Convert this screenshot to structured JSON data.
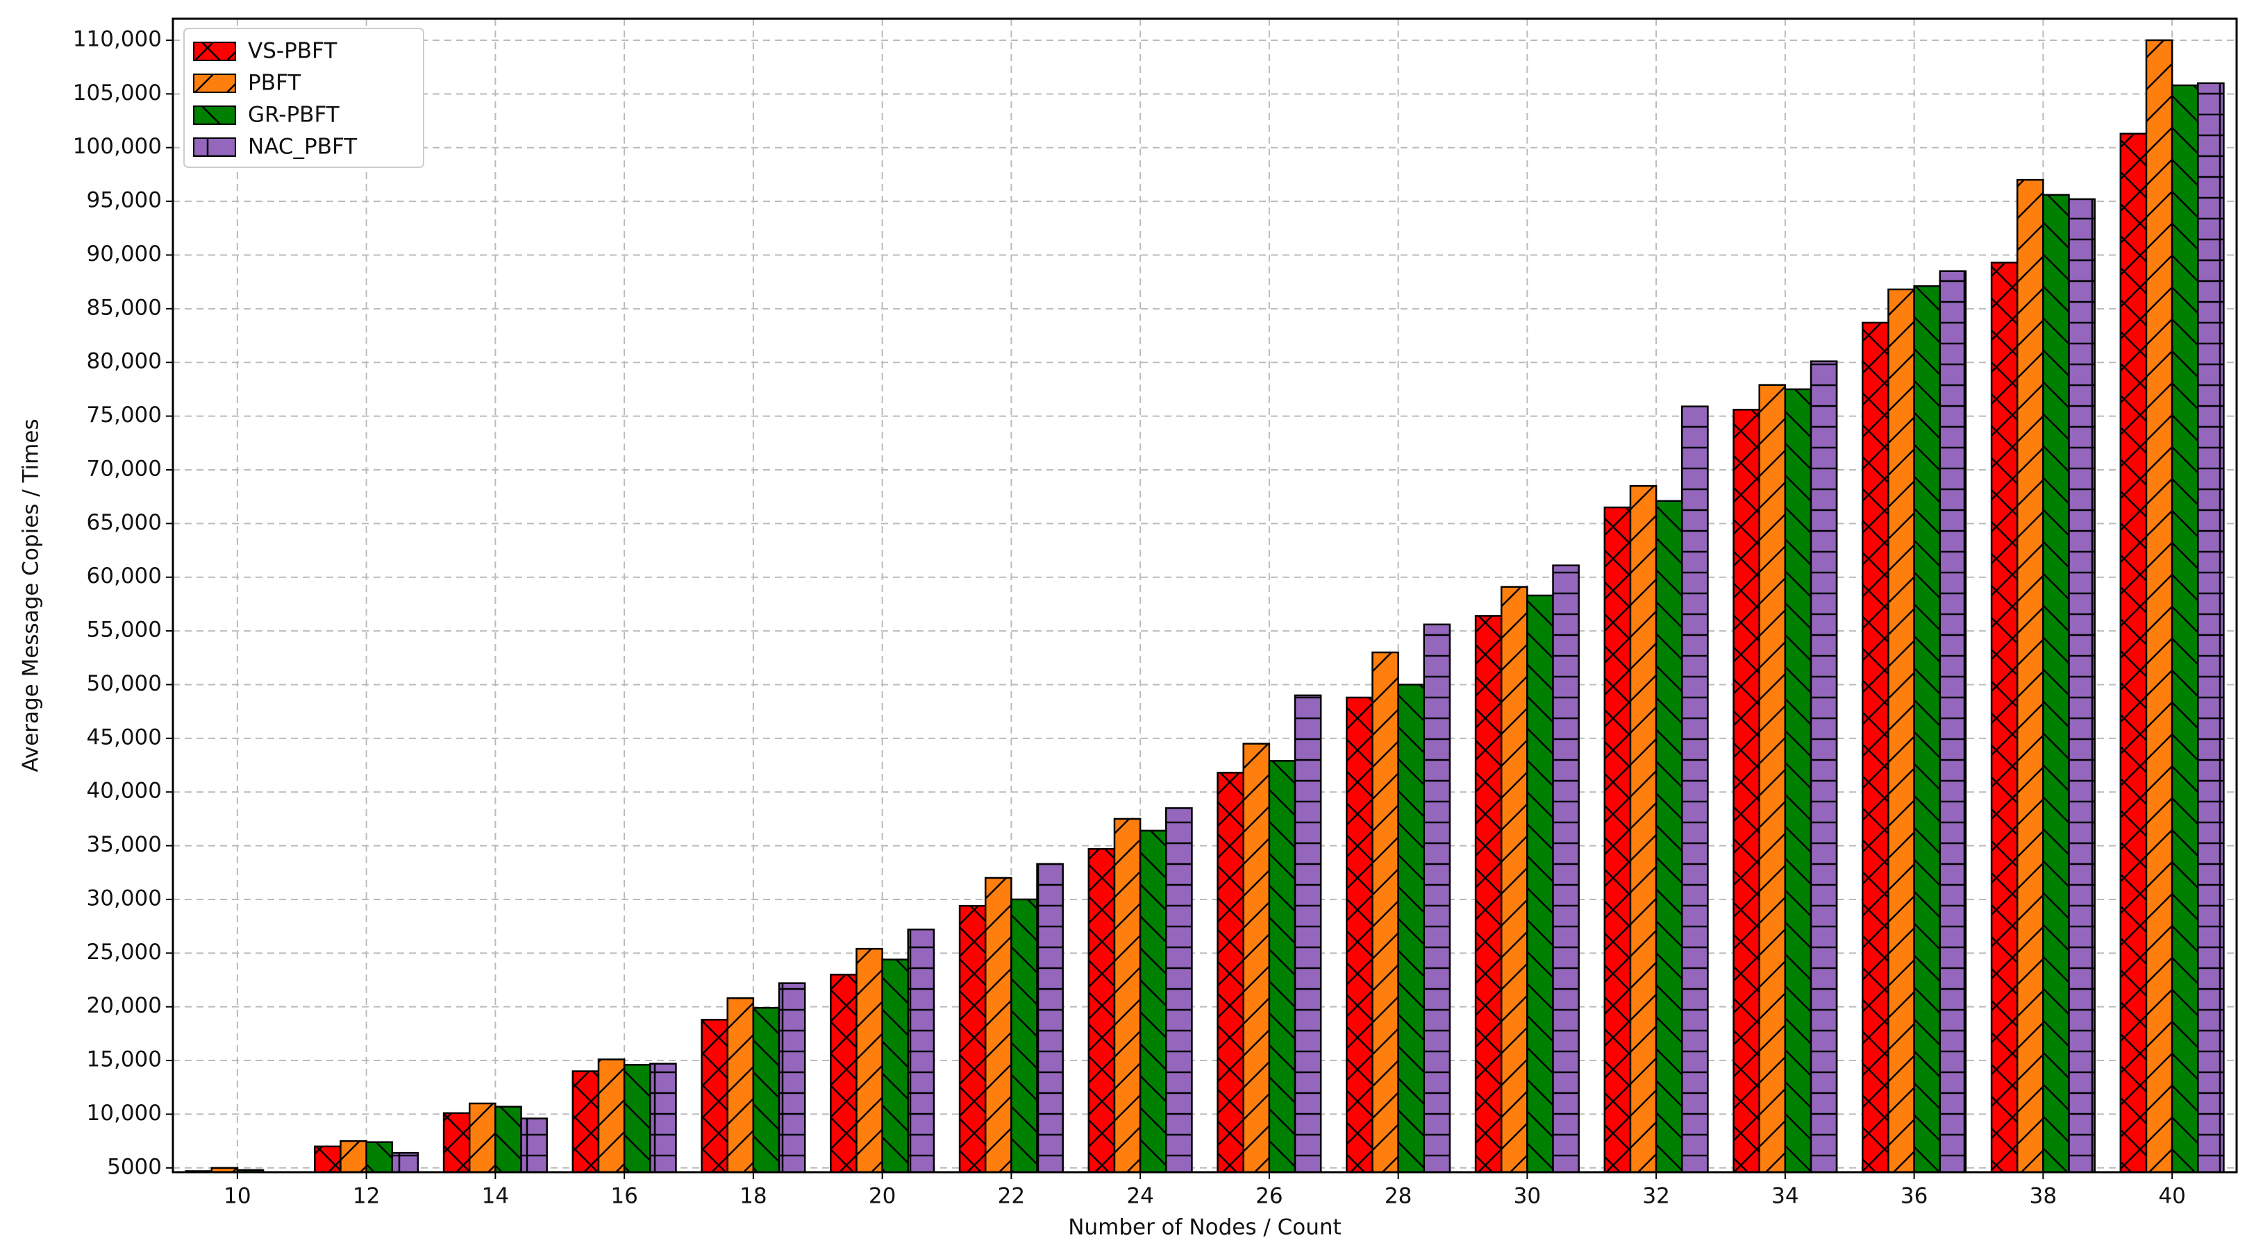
{
  "chart_data": {
    "type": "bar",
    "x_label": "Number of Nodes / Count",
    "y_label": "Average Message Copies / Times",
    "categories": [
      "10",
      "12",
      "14",
      "16",
      "18",
      "20",
      "22",
      "24",
      "26",
      "28",
      "30",
      "32",
      "34",
      "36",
      "38",
      "40"
    ],
    "series": [
      {
        "name": "VS-PBFT",
        "color": "#ff0000",
        "values": [
          4700,
          7000,
          10100,
          14000,
          18800,
          23000,
          29400,
          34700,
          41800,
          48800,
          56400,
          66500,
          75600,
          83700,
          89300,
          101300
        ]
      },
      {
        "name": "PBFT",
        "color": "#ff7f0e",
        "values": [
          5000,
          7500,
          11000,
          15100,
          20800,
          25400,
          32000,
          37500,
          44500,
          53000,
          59100,
          68500,
          77900,
          86800,
          97000,
          110000
        ]
      },
      {
        "name": "GR-PBFT",
        "color": "#008000",
        "values": [
          4800,
          7400,
          10700,
          14600,
          19900,
          24400,
          30000,
          36400,
          42900,
          50000,
          58300,
          67100,
          77500,
          87100,
          95600,
          105800
        ]
      },
      {
        "name": "NAC_PBFT",
        "color": "#9467bd",
        "values": [
          4600,
          6400,
          9600,
          14700,
          22200,
          27200,
          33300,
          38500,
          49000,
          55600,
          61100,
          75900,
          80100,
          88500,
          95200,
          106000
        ]
      }
    ],
    "ylim": [
      4600,
      112000
    ],
    "yticks": [
      5000,
      {
        "value": 10000,
        "label": "10,000"
      },
      {
        "value": 15000,
        "label": "15,000"
      },
      {
        "value": 20000,
        "label": "20,000"
      },
      {
        "value": 25000,
        "label": "25,000"
      },
      {
        "value": 30000,
        "label": "30,000"
      },
      {
        "value": 35000,
        "label": "35,000"
      },
      {
        "value": 40000,
        "label": "40,000"
      },
      {
        "value": 45000,
        "label": "45,000"
      },
      {
        "value": 50000,
        "label": "50,000"
      },
      {
        "value": 55000,
        "label": "55,000"
      },
      {
        "value": 60000,
        "label": "60,000"
      },
      {
        "value": 65000,
        "label": "65,000"
      },
      {
        "value": 70000,
        "label": "70,000"
      },
      {
        "value": 75000,
        "label": "75,000"
      },
      {
        "value": 80000,
        "label": "80,000"
      },
      {
        "value": 85000,
        "label": "85,000"
      },
      {
        "value": 90000,
        "label": "90,000"
      },
      {
        "value": 95000,
        "label": "95,000"
      },
      {
        "value": 100000,
        "label": "100,000"
      },
      {
        "value": 105000,
        "label": "105,000"
      },
      {
        "value": 110000,
        "label": "110,000"
      }
    ],
    "grid": true,
    "legend": "upper-left"
  }
}
